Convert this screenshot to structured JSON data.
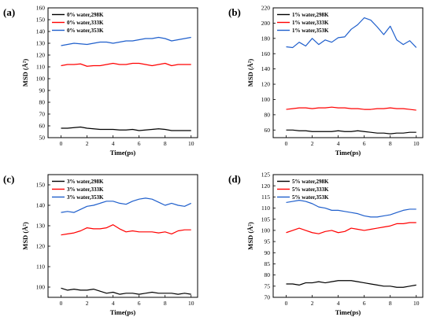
{
  "chart_data": [
    {
      "type": "line",
      "panel_label": "(a)",
      "xlabel": "Time(ps)",
      "ylabel": "MSD (Å²)",
      "xlim": [
        -1,
        10.5
      ],
      "ylim": [
        50,
        160
      ],
      "xticks": [
        0,
        2,
        4,
        6,
        8,
        10
      ],
      "yticks": [
        50,
        60,
        70,
        80,
        90,
        100,
        110,
        120,
        130,
        140,
        150,
        160
      ],
      "grid": false,
      "legend": "top-left",
      "series": [
        {
          "name": "0% water,298K",
          "color": "#000000",
          "x": [
            0,
            0.5,
            1,
            1.5,
            2,
            2.5,
            3,
            3.5,
            4,
            4.5,
            5,
            5.5,
            6,
            6.5,
            7,
            7.5,
            8,
            8.5,
            9,
            9.5,
            10
          ],
          "y": [
            58,
            58,
            58.5,
            59,
            58,
            57.5,
            57,
            57,
            57,
            56.5,
            56.5,
            57,
            56,
            56.5,
            57,
            57.5,
            57,
            56,
            56,
            56,
            56
          ]
        },
        {
          "name": "0% water,333K",
          "color": "#ff0000",
          "x": [
            0,
            0.5,
            1,
            1.5,
            2,
            2.5,
            3,
            3.5,
            4,
            4.5,
            5,
            5.5,
            6,
            6.5,
            7,
            7.5,
            8,
            8.5,
            9,
            9.5,
            10
          ],
          "y": [
            111,
            112,
            112,
            112.5,
            110.5,
            111,
            111,
            112,
            113,
            112,
            112,
            113,
            113,
            112,
            111,
            112,
            113,
            111,
            112,
            112,
            112
          ]
        },
        {
          "name": "0% water,353K",
          "color": "#1f5fcc",
          "x": [
            0,
            0.5,
            1,
            1.5,
            2,
            2.5,
            3,
            3.5,
            4,
            4.5,
            5,
            5.5,
            6,
            6.5,
            7,
            7.5,
            8,
            8.5,
            9,
            9.5,
            10
          ],
          "y": [
            128,
            129,
            130,
            129.5,
            129,
            130,
            131,
            131,
            130,
            131,
            132,
            132,
            133,
            134,
            134,
            135,
            134,
            132,
            133,
            134,
            135
          ]
        }
      ]
    },
    {
      "type": "line",
      "panel_label": "(b)",
      "xlabel": "Time(ps)",
      "ylabel": "MSD (Å²)",
      "xlim": [
        -1,
        10.5
      ],
      "ylim": [
        50,
        220
      ],
      "xticks": [
        0,
        2,
        4,
        6,
        8,
        10
      ],
      "yticks": [
        60,
        80,
        100,
        120,
        140,
        160,
        180,
        200,
        220
      ],
      "grid": false,
      "legend": "top-left",
      "series": [
        {
          "name": "1% water,298K",
          "color": "#000000",
          "x": [
            0,
            0.5,
            1,
            1.5,
            2,
            2.5,
            3,
            3.5,
            4,
            4.5,
            5,
            5.5,
            6,
            6.5,
            7,
            7.5,
            8,
            8.5,
            9,
            9.5,
            10
          ],
          "y": [
            60,
            60,
            59,
            59,
            58,
            58,
            58,
            58,
            59,
            58,
            58,
            59,
            58,
            57,
            56,
            56,
            55,
            56,
            56,
            57,
            57
          ]
        },
        {
          "name": "1% water,333K",
          "color": "#ff0000",
          "x": [
            0,
            0.5,
            1,
            1.5,
            2,
            2.5,
            3,
            3.5,
            4,
            4.5,
            5,
            5.5,
            6,
            6.5,
            7,
            7.5,
            8,
            8.5,
            9,
            9.5,
            10
          ],
          "y": [
            87,
            88,
            89,
            89,
            88,
            89,
            89,
            90,
            89,
            89,
            88,
            88,
            87,
            87,
            88,
            88,
            89,
            88,
            88,
            87,
            86
          ]
        },
        {
          "name": "1% water,353K",
          "color": "#1f5fcc",
          "x": [
            0,
            0.5,
            1,
            1.5,
            2,
            2.5,
            3,
            3.5,
            4,
            4.5,
            5,
            5.5,
            6,
            6.5,
            7,
            7.5,
            8,
            8.5,
            9,
            9.5,
            10
          ],
          "y": [
            169,
            168,
            175,
            170,
            180,
            172,
            178,
            175,
            181,
            182,
            192,
            198,
            207,
            204,
            195,
            185,
            196,
            178,
            172,
            177,
            168
          ]
        }
      ]
    },
    {
      "type": "line",
      "panel_label": "(c)",
      "xlabel": "Time(ps)",
      "ylabel": "MSD (Å²)",
      "xlim": [
        -1,
        10.5
      ],
      "ylim": [
        95,
        155
      ],
      "xticks": [
        0,
        2,
        4,
        6,
        8,
        10
      ],
      "yticks": [
        100,
        110,
        120,
        130,
        140,
        150
      ],
      "grid": false,
      "legend": "top-left",
      "series": [
        {
          "name": "3% water,298K",
          "color": "#000000",
          "x": [
            0,
            0.5,
            1,
            1.5,
            2,
            2.5,
            3,
            3.5,
            4,
            4.5,
            5,
            5.5,
            6,
            6.5,
            7,
            7.5,
            8,
            8.5,
            9,
            9.5,
            10
          ],
          "y": [
            99.5,
            98.5,
            99,
            98.5,
            98.5,
            99,
            98,
            97,
            97.5,
            96.5,
            97,
            97,
            96.5,
            97,
            97.5,
            97,
            97,
            97,
            96.5,
            97,
            96.5
          ]
        },
        {
          "name": "3% water,333K",
          "color": "#ff0000",
          "x": [
            0,
            0.5,
            1,
            1.5,
            2,
            2.5,
            3,
            3.5,
            4,
            4.5,
            5,
            5.5,
            6,
            6.5,
            7,
            7.5,
            8,
            8.5,
            9,
            9.5,
            10
          ],
          "y": [
            125.5,
            126,
            126.5,
            127.5,
            129,
            128.5,
            128.5,
            129,
            130.5,
            128.5,
            127,
            127.5,
            127,
            127,
            127,
            126.5,
            127,
            126,
            127.5,
            128,
            128
          ]
        },
        {
          "name": "3% water,353K",
          "color": "#1f5fcc",
          "x": [
            0,
            0.5,
            1,
            1.5,
            2,
            2.5,
            3,
            3.5,
            4,
            4.5,
            5,
            5.5,
            6,
            6.5,
            7,
            7.5,
            8,
            8.5,
            9,
            9.5,
            10
          ],
          "y": [
            136.5,
            137,
            136.5,
            138,
            139.5,
            140,
            141,
            142,
            142,
            141,
            140.5,
            142,
            143,
            143.5,
            143,
            141.5,
            140,
            141,
            140,
            139.5,
            141
          ]
        }
      ]
    },
    {
      "type": "line",
      "panel_label": "(d)",
      "xlabel": "Time(ps)",
      "ylabel": "MSD (Å²)",
      "xlim": [
        -1,
        10.5
      ],
      "ylim": [
        70,
        125
      ],
      "xticks": [
        0,
        2,
        4,
        6,
        8,
        10
      ],
      "yticks": [
        70,
        75,
        80,
        85,
        90,
        95,
        100,
        105,
        110,
        115,
        120,
        125
      ],
      "grid": false,
      "legend": "top-left",
      "series": [
        {
          "name": "5% water,298K",
          "color": "#000000",
          "x": [
            0,
            0.5,
            1,
            1.5,
            2,
            2.5,
            3,
            3.5,
            4,
            4.5,
            5,
            5.5,
            6,
            6.5,
            7,
            7.5,
            8,
            8.5,
            9,
            9.5,
            10
          ],
          "y": [
            76,
            76,
            75.5,
            76.5,
            76.5,
            77,
            76.5,
            77,
            77.5,
            77.5,
            77.5,
            77,
            76.5,
            76,
            75.5,
            75,
            75,
            74.5,
            74.5,
            75,
            75.5
          ]
        },
        {
          "name": "5% water,333K",
          "color": "#ff0000",
          "x": [
            0,
            0.5,
            1,
            1.5,
            2,
            2.5,
            3,
            3.5,
            4,
            4.5,
            5,
            5.5,
            6,
            6.5,
            7,
            7.5,
            8,
            8.5,
            9,
            9.5,
            10
          ],
          "y": [
            99,
            100,
            101,
            100,
            99,
            98.5,
            99.5,
            100,
            99,
            99.5,
            101,
            100.5,
            100,
            100.5,
            101,
            101.5,
            102,
            103,
            103,
            103.5,
            103.5
          ]
        },
        {
          "name": "5% water,353K",
          "color": "#1f5fcc",
          "x": [
            0,
            0.5,
            1,
            1.5,
            2,
            2.5,
            3,
            3.5,
            4,
            4.5,
            5,
            5.5,
            6,
            6.5,
            7,
            7.5,
            8,
            8.5,
            9,
            9.5,
            10
          ],
          "y": [
            112.5,
            113,
            113.5,
            113,
            112,
            110.5,
            110,
            109,
            109,
            108.5,
            108,
            107.5,
            106.5,
            106,
            106,
            106.5,
            107,
            108,
            109,
            109.5,
            109.5
          ]
        }
      ]
    }
  ]
}
